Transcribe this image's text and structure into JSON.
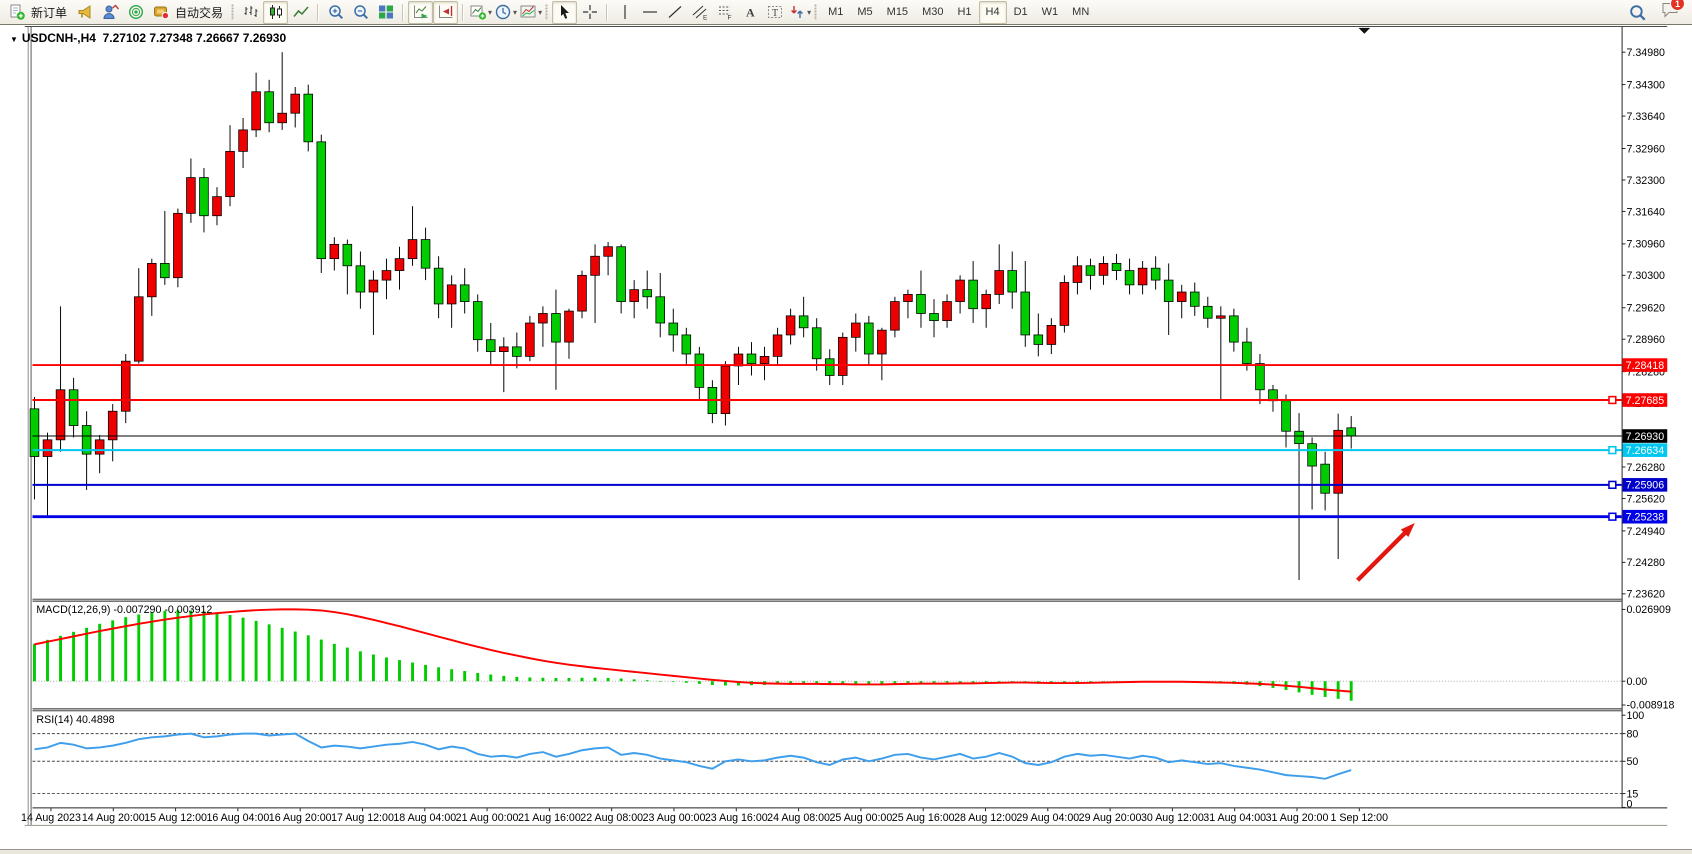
{
  "toolbar": {
    "new_order": "新订单",
    "auto_trading": "自动交易",
    "timeframes": [
      "M1",
      "M5",
      "M15",
      "M30",
      "H1",
      "H4",
      "D1",
      "W1",
      "MN"
    ],
    "active_timeframe": "H4",
    "notification_count": "1"
  },
  "window": {
    "symbol_title": "USDCNH-,H4",
    "ohlc_title": "7.27102 7.27348 7.26667 7.26930"
  },
  "chart_data": {
    "type": "candlestick",
    "symbol": "USDCNH-",
    "period": "H4",
    "current_ohlc": {
      "open": 7.27102,
      "high": 7.27348,
      "low": 7.26667,
      "close": 7.2693
    },
    "ylim": [
      7.2362,
      7.3498
    ],
    "grid": false,
    "colors": {
      "bull": "#EE0000",
      "bear": "#00CC00",
      "wick": "#000000",
      "background": "#FFFFFF"
    },
    "y_ticks": [
      "7.34980",
      "7.34300",
      "7.33640",
      "7.32960",
      "7.32300",
      "7.31640",
      "7.30960",
      "7.30300",
      "7.29620",
      "7.28960",
      "7.28280",
      "7.27620",
      "7.26280",
      "7.25620",
      "7.24940",
      "7.24280",
      "7.23620"
    ],
    "price_lines": [
      {
        "label": "7.28418",
        "price": 7.28418,
        "color": "#FF0000",
        "width": 2,
        "handle": false,
        "name": "resistance-line-1"
      },
      {
        "label": "7.27685",
        "price": 7.27685,
        "color": "#FF0000",
        "width": 2,
        "handle": true,
        "name": "resistance-line-2"
      },
      {
        "label": "7.26930",
        "price": 7.2693,
        "color": "#000000",
        "width": 1,
        "handle": false,
        "name": "current-price-line"
      },
      {
        "label": "7.26634",
        "price": 7.26634,
        "color": "#00C6F0",
        "width": 2,
        "handle": true,
        "name": "support-line-1"
      },
      {
        "label": "7.25906",
        "price": 7.25906,
        "color": "#0000CD",
        "width": 2,
        "handle": true,
        "name": "support-line-2"
      },
      {
        "label": "7.25238",
        "price": 7.25238,
        "color": "#0000E6",
        "width": 3,
        "handle": true,
        "name": "support-line-3"
      }
    ],
    "x_labels": [
      "14 Aug 2023",
      "14 Aug 20:00",
      "15 Aug 12:00",
      "16 Aug 04:00",
      "16 Aug 20:00",
      "17 Aug 12:00",
      "18 Aug 04:00",
      "21 Aug 00:00",
      "21 Aug 16:00",
      "22 Aug 08:00",
      "23 Aug 00:00",
      "23 Aug 16:00",
      "24 Aug 08:00",
      "25 Aug 00:00",
      "25 Aug 16:00",
      "28 Aug 12:00",
      "29 Aug 04:00",
      "29 Aug 20:00",
      "30 Aug 12:00",
      "31 Aug 04:00",
      "31 Aug 20:00",
      "1 Sep 12:00"
    ],
    "candles": [
      [
        7.275,
        7.2775,
        7.256,
        7.265
      ],
      [
        7.265,
        7.27,
        7.2525,
        7.2685
      ],
      [
        7.2685,
        7.2965,
        7.266,
        7.279
      ],
      [
        7.279,
        7.2815,
        7.269,
        7.2715
      ],
      [
        7.2715,
        7.2745,
        7.258,
        7.2655
      ],
      [
        7.2655,
        7.2695,
        7.2615,
        7.2685
      ],
      [
        7.2685,
        7.276,
        7.264,
        7.2745
      ],
      [
        7.2745,
        7.2865,
        7.272,
        7.285
      ],
      [
        7.285,
        7.3045,
        7.2845,
        7.2985
      ],
      [
        7.2985,
        7.3065,
        7.2945,
        7.3055
      ],
      [
        7.3055,
        7.3165,
        7.301,
        7.3025
      ],
      [
        7.3025,
        7.317,
        7.3005,
        7.316
      ],
      [
        7.316,
        7.3275,
        7.314,
        7.3235
      ],
      [
        7.3235,
        7.3255,
        7.312,
        7.3155
      ],
      [
        7.3155,
        7.3215,
        7.3135,
        7.3195
      ],
      [
        7.3195,
        7.3345,
        7.3175,
        7.329
      ],
      [
        7.329,
        7.336,
        7.3255,
        7.3335
      ],
      [
        7.3335,
        7.3455,
        7.332,
        7.3415
      ],
      [
        7.3415,
        7.344,
        7.333,
        7.335
      ],
      [
        7.335,
        7.3498,
        7.3335,
        7.337
      ],
      [
        7.337,
        7.3425,
        7.334,
        7.341
      ],
      [
        7.341,
        7.343,
        7.329,
        7.331
      ],
      [
        7.331,
        7.3325,
        7.3035,
        7.3065
      ],
      [
        7.3065,
        7.311,
        7.304,
        7.3095
      ],
      [
        7.3095,
        7.3105,
        7.299,
        7.305
      ],
      [
        7.305,
        7.308,
        7.296,
        7.2995
      ],
      [
        7.2995,
        7.304,
        7.2905,
        7.302
      ],
      [
        7.302,
        7.3065,
        7.298,
        7.304
      ],
      [
        7.304,
        7.309,
        7.3,
        7.3065
      ],
      [
        7.3065,
        7.3175,
        7.305,
        7.3105
      ],
      [
        7.3105,
        7.313,
        7.302,
        7.3045
      ],
      [
        7.3045,
        7.307,
        7.294,
        7.297
      ],
      [
        7.297,
        7.303,
        7.292,
        7.301
      ],
      [
        7.301,
        7.3045,
        7.295,
        7.2975
      ],
      [
        7.2975,
        7.299,
        7.287,
        7.2895
      ],
      [
        7.2895,
        7.293,
        7.284,
        7.287
      ],
      [
        7.287,
        7.29,
        7.2785,
        7.288
      ],
      [
        7.288,
        7.291,
        7.2835,
        7.286
      ],
      [
        7.286,
        7.2945,
        7.285,
        7.293
      ],
      [
        7.293,
        7.2965,
        7.288,
        7.295
      ],
      [
        7.295,
        7.3,
        7.279,
        7.289
      ],
      [
        7.289,
        7.296,
        7.2855,
        7.2955
      ],
      [
        7.2955,
        7.304,
        7.294,
        7.303
      ],
      [
        7.303,
        7.3095,
        7.293,
        7.307
      ],
      [
        7.307,
        7.31,
        7.303,
        7.309
      ],
      [
        7.309,
        7.3095,
        7.295,
        7.2975
      ],
      [
        7.2975,
        7.302,
        7.294,
        7.3
      ],
      [
        7.3,
        7.304,
        7.296,
        7.2985
      ],
      [
        7.2985,
        7.3035,
        7.29,
        7.293
      ],
      [
        7.293,
        7.296,
        7.287,
        7.2905
      ],
      [
        7.2905,
        7.292,
        7.284,
        7.2865
      ],
      [
        7.2865,
        7.288,
        7.277,
        7.2795
      ],
      [
        7.2795,
        7.281,
        7.272,
        7.274
      ],
      [
        7.274,
        7.285,
        7.2715,
        7.284
      ],
      [
        7.284,
        7.288,
        7.28,
        7.2865
      ],
      [
        7.2865,
        7.289,
        7.282,
        7.2845
      ],
      [
        7.2845,
        7.288,
        7.281,
        7.286
      ],
      [
        7.286,
        7.292,
        7.284,
        7.2905
      ],
      [
        7.2905,
        7.296,
        7.2885,
        7.2945
      ],
      [
        7.2945,
        7.2985,
        7.29,
        7.292
      ],
      [
        7.292,
        7.294,
        7.283,
        7.2855
      ],
      [
        7.2855,
        7.2875,
        7.28,
        7.282
      ],
      [
        7.282,
        7.291,
        7.28,
        7.29
      ],
      [
        7.29,
        7.295,
        7.287,
        7.293
      ],
      [
        7.293,
        7.2945,
        7.284,
        7.2865
      ],
      [
        7.2865,
        7.292,
        7.281,
        7.2915
      ],
      [
        7.2915,
        7.2985,
        7.29,
        7.2975
      ],
      [
        7.2975,
        7.3,
        7.294,
        7.299
      ],
      [
        7.299,
        7.304,
        7.292,
        7.295
      ],
      [
        7.295,
        7.298,
        7.29,
        7.2935
      ],
      [
        7.2935,
        7.299,
        7.292,
        7.2975
      ],
      [
        7.2975,
        7.303,
        7.295,
        7.302
      ],
      [
        7.302,
        7.306,
        7.293,
        7.296
      ],
      [
        7.296,
        7.3,
        7.292,
        7.299
      ],
      [
        7.299,
        7.3095,
        7.297,
        7.304
      ],
      [
        7.304,
        7.308,
        7.296,
        7.2995
      ],
      [
        7.2995,
        7.306,
        7.288,
        7.2905
      ],
      [
        7.2905,
        7.295,
        7.286,
        7.2885
      ],
      [
        7.2885,
        7.294,
        7.2865,
        7.2925
      ],
      [
        7.2925,
        7.303,
        7.291,
        7.3015
      ],
      [
        7.3015,
        7.307,
        7.299,
        7.305
      ],
      [
        7.305,
        7.3065,
        7.3,
        7.303
      ],
      [
        7.303,
        7.307,
        7.301,
        7.3055
      ],
      [
        7.3055,
        7.3075,
        7.302,
        7.304
      ],
      [
        7.304,
        7.3065,
        7.299,
        7.301
      ],
      [
        7.301,
        7.306,
        7.299,
        7.3045
      ],
      [
        7.3045,
        7.307,
        7.3,
        7.302
      ],
      [
        7.302,
        7.3055,
        7.2905,
        7.2975
      ],
      [
        7.2975,
        7.301,
        7.294,
        7.2995
      ],
      [
        7.2995,
        7.3015,
        7.2945,
        7.2965
      ],
      [
        7.2965,
        7.2985,
        7.292,
        7.294
      ],
      [
        7.294,
        7.2965,
        7.277,
        7.2945
      ],
      [
        7.2945,
        7.296,
        7.287,
        7.289
      ],
      [
        7.289,
        7.292,
        7.283,
        7.2845
      ],
      [
        7.2845,
        7.2865,
        7.276,
        7.279
      ],
      [
        7.279,
        7.28,
        7.2744,
        7.2767
      ],
      [
        7.2767,
        7.278,
        7.2669,
        7.2703
      ],
      [
        7.2703,
        7.2741,
        7.2391,
        7.2677
      ],
      [
        7.2677,
        7.269,
        7.2539,
        7.263
      ],
      [
        7.2634,
        7.266,
        7.2537,
        7.2573
      ],
      [
        7.2573,
        7.274,
        7.2435,
        7.2705
      ],
      [
        7.27102,
        7.27348,
        7.26667,
        7.2693
      ]
    ],
    "panes": {
      "macd": {
        "label": "MACD(12,26,9)",
        "display_values": "-0.007290 -0.003912",
        "axis_ticks": [
          "0.026909",
          "0.00",
          "-0.008918"
        ],
        "histogram_color": "#00CC00",
        "signal_color": "#FF0000",
        "histogram": [
          0.014,
          0.0155,
          0.017,
          0.0185,
          0.02,
          0.0215,
          0.0228,
          0.024,
          0.025,
          0.0258,
          0.0263,
          0.0266,
          0.0265,
          0.0262,
          0.0256,
          0.0248,
          0.0238,
          0.0226,
          0.0213,
          0.02,
          0.0186,
          0.0172,
          0.0156,
          0.014,
          0.0126,
          0.0112,
          0.01,
          0.0089,
          0.0079,
          0.007,
          0.0061,
          0.0052,
          0.0045,
          0.0038,
          0.0031,
          0.0025,
          0.002,
          0.0016,
          0.0014,
          0.0013,
          0.0012,
          0.0012,
          0.0013,
          0.0013,
          0.0012,
          0.001,
          0.0007,
          0.0004,
          0.0001,
          -0.0002,
          -0.0006,
          -0.001,
          -0.0014,
          -0.0016,
          -0.0016,
          -0.0015,
          -0.0014,
          -0.0012,
          -0.001,
          -0.0009,
          -0.001,
          -0.0012,
          -0.0013,
          -0.0012,
          -0.0012,
          -0.0011,
          -0.0009,
          -0.0007,
          -0.0007,
          -0.0008,
          -0.0008,
          -0.0006,
          -0.0006,
          -0.0005,
          -0.0003,
          -0.0003,
          -0.0006,
          -0.0009,
          -0.001,
          -0.0008,
          -0.0005,
          -0.0003,
          -0.0002,
          -0.0001,
          -0.0001,
          0.0,
          -0.0001,
          -0.0003,
          -0.0004,
          -0.0005,
          -0.0007,
          -0.0008,
          -0.001,
          -0.0013,
          -0.0018,
          -0.0025,
          -0.0033,
          -0.0042,
          -0.0051,
          -0.0059,
          -0.0066,
          -0.00729
        ],
        "signal": [
          0.0138,
          0.0148,
          0.0158,
          0.0168,
          0.0178,
          0.0188,
          0.0197,
          0.0206,
          0.0215,
          0.0223,
          0.0231,
          0.0238,
          0.0244,
          0.025,
          0.0255,
          0.0259,
          0.0263,
          0.0266,
          0.0268,
          0.0269,
          0.0269,
          0.0268,
          0.0265,
          0.0259,
          0.0251,
          0.0241,
          0.023,
          0.0218,
          0.0206,
          0.0193,
          0.018,
          0.0167,
          0.0154,
          0.0141,
          0.0129,
          0.0117,
          0.0106,
          0.0096,
          0.0086,
          0.0077,
          0.0069,
          0.0062,
          0.0056,
          0.005,
          0.0045,
          0.004,
          0.0035,
          0.003,
          0.0025,
          0.002,
          0.0015,
          0.001,
          0.0005,
          0.0001,
          -0.0003,
          -0.0006,
          -0.0008,
          -0.0009,
          -0.001,
          -0.001,
          -0.001,
          -0.0011,
          -0.0011,
          -0.0012,
          -0.0012,
          -0.0012,
          -0.0011,
          -0.001,
          -0.0009,
          -0.0009,
          -0.0009,
          -0.0008,
          -0.0008,
          -0.0007,
          -0.0006,
          -0.0005,
          -0.0005,
          -0.0006,
          -0.0007,
          -0.0007,
          -0.0007,
          -0.0006,
          -0.0005,
          -0.0004,
          -0.0003,
          -0.0002,
          -0.0002,
          -0.0002,
          -0.0002,
          -0.0003,
          -0.0004,
          -0.0005,
          -0.0006,
          -0.0008,
          -0.001,
          -0.0013,
          -0.0017,
          -0.0021,
          -0.0026,
          -0.0031,
          -0.0035,
          -0.003912
        ]
      },
      "rsi": {
        "label": "RSI(14)",
        "display_value": "40.4898",
        "axis_ticks": [
          "100",
          "80",
          "50",
          "15",
          "0"
        ],
        "levels": [
          80,
          50,
          15
        ],
        "line_color": "#3E9EEB",
        "values": [
          63,
          65,
          70,
          68,
          64,
          65,
          67,
          70,
          74,
          76,
          77,
          79,
          80,
          76,
          77,
          79,
          80,
          80,
          78,
          79,
          80,
          72,
          65,
          67,
          66,
          64,
          66,
          68,
          69,
          71,
          68,
          63,
          66,
          64,
          58,
          55,
          56,
          54,
          58,
          60,
          55,
          58,
          62,
          64,
          65,
          57,
          59,
          57,
          53,
          51,
          49,
          45,
          42,
          50,
          52,
          50,
          51,
          54,
          56,
          54,
          49,
          46,
          52,
          54,
          50,
          53,
          57,
          58,
          54,
          52,
          55,
          58,
          53,
          55,
          59,
          55,
          48,
          46,
          49,
          55,
          58,
          56,
          57,
          55,
          53,
          56,
          54,
          49,
          51,
          49,
          47,
          48,
          45,
          43,
          41,
          38,
          35,
          34,
          33,
          31,
          36,
          40.4898
        ]
      }
    },
    "annotations": [
      {
        "type": "arrow",
        "from": [
          1373,
          597
        ],
        "to": [
          1432,
          538
        ],
        "color": "#E3170D"
      }
    ]
  }
}
